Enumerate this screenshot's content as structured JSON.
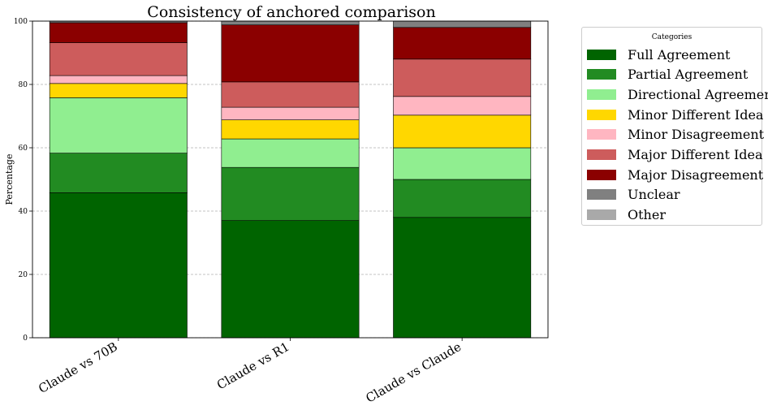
{
  "chart_data": {
    "type": "bar",
    "stacked": true,
    "title": "Consistency of anchored comparison",
    "ylabel": "Percentage",
    "xlabel": "",
    "ylim": [
      0,
      100
    ],
    "yticks": [
      0,
      20,
      40,
      60,
      80,
      100
    ],
    "grid": "horizontal dashed",
    "categories": [
      "Claude vs 70B",
      "Claude vs R1",
      "Claude vs Claude"
    ],
    "legend": {
      "title": "Categories",
      "placement": "right"
    },
    "series": [
      {
        "name": "Full Agreement",
        "color": "#006400",
        "values": [
          45.8,
          37.0,
          38.0
        ]
      },
      {
        "name": "Partial Agreement",
        "color": "#228B22",
        "values": [
          12.5,
          16.8,
          12.0
        ]
      },
      {
        "name": "Directional Agreement",
        "color": "#90EE90",
        "values": [
          17.5,
          9.0,
          10.0
        ]
      },
      {
        "name": "Minor Different Idea",
        "color": "#FFD700",
        "values": [
          4.5,
          6.0,
          10.3
        ]
      },
      {
        "name": "Minor Disagreement",
        "color": "#FFB6C1",
        "values": [
          2.5,
          4.0,
          5.9
        ]
      },
      {
        "name": "Major Different Idea",
        "color": "#CD5C5C",
        "values": [
          10.4,
          8.0,
          11.8
        ]
      },
      {
        "name": "Major Disagreement",
        "color": "#8B0000",
        "values": [
          6.3,
          18.0,
          10.0
        ]
      },
      {
        "name": "Unclear",
        "color": "#808080",
        "values": [
          0.5,
          1.2,
          2.0
        ]
      },
      {
        "name": "Other",
        "color": "#A9A9A9",
        "values": [
          0,
          0,
          0
        ]
      }
    ]
  }
}
